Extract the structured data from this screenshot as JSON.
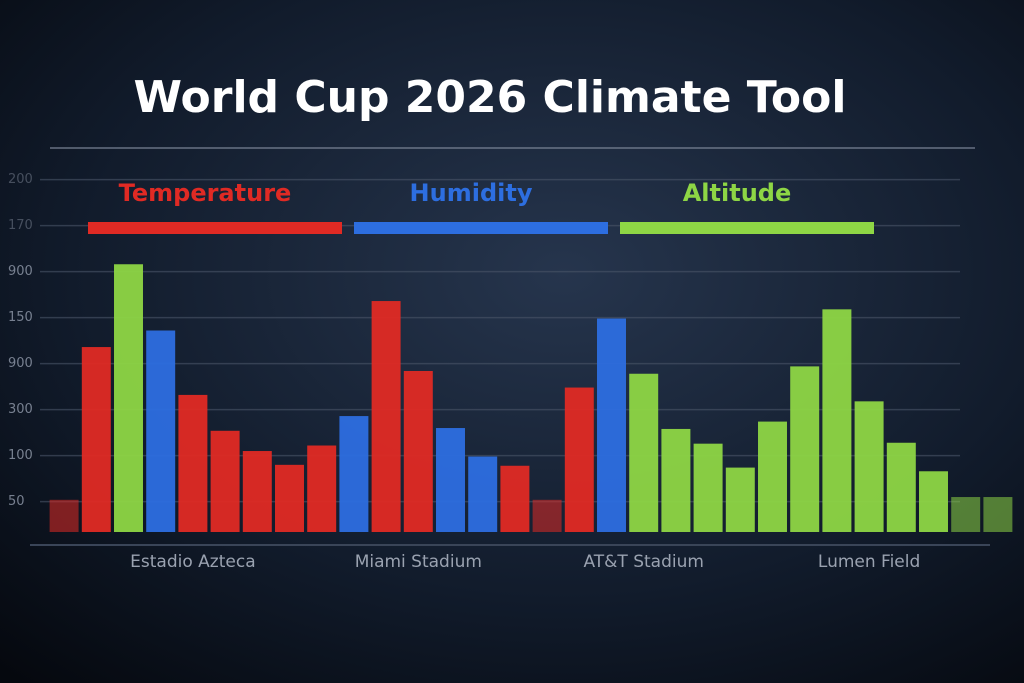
{
  "chart_data": {
    "type": "bar",
    "title": "World Cup 2026 Climate Tool",
    "categories": [
      null,
      null,
      null,
      null,
      "Estadio Azteca",
      null,
      null,
      null,
      null,
      null,
      null,
      "Miami Stadium",
      null,
      null,
      null,
      null,
      null,
      null,
      "AT&T Stadium",
      null,
      null,
      null,
      null,
      null,
      null,
      "Lumen Field",
      null,
      null,
      null,
      null
    ],
    "series": [
      {
        "name": "Temperature",
        "color": "#e02a24",
        "values": [
          52,
          218,
          null,
          null,
          166,
          127,
          105,
          90,
          111,
          null,
          268,
          192,
          null,
          null,
          89,
          52,
          174,
          null,
          null,
          null,
          null,
          null,
          null,
          null,
          null,
          null,
          null,
          null,
          null,
          null
        ]
      },
      {
        "name": "Humidity",
        "color": "#2d6ee0",
        "values": [
          null,
          null,
          null,
          236,
          null,
          null,
          null,
          null,
          null,
          143,
          null,
          null,
          130,
          99,
          null,
          null,
          null,
          249,
          null,
          null,
          null,
          null,
          null,
          null,
          null,
          null,
          null,
          null,
          null,
          null
        ]
      },
      {
        "name": "Altitude",
        "color": "#8ed645",
        "values": [
          null,
          null,
          308,
          null,
          null,
          null,
          null,
          null,
          null,
          null,
          null,
          null,
          null,
          null,
          null,
          null,
          null,
          null,
          189,
          129,
          113,
          87,
          137,
          197,
          259,
          159,
          114,
          83,
          55,
          55
        ]
      }
    ],
    "ylim": [
      17,
      430
    ],
    "yticks": [
      50,
      100,
      {
        "value": 150,
        "label": "300"
      },
      {
        "value": 200,
        "label": "900"
      },
      {
        "value": 250,
        "label": "150"
      },
      {
        "value": 300,
        "label": "900"
      },
      {
        "value": 350,
        "label": "170"
      },
      {
        "value": 400,
        "label": "200"
      }
    ],
    "grid": true,
    "legend": "top"
  }
}
